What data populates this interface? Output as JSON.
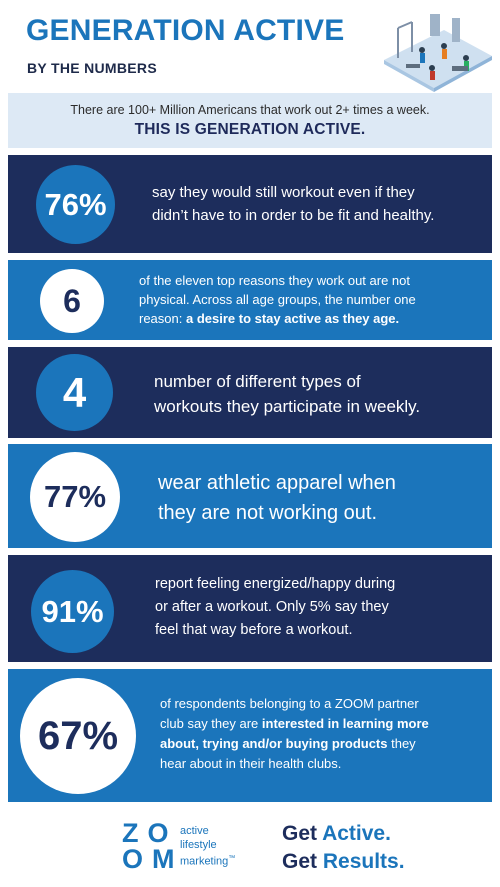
{
  "header": {
    "title": "GENERATION ACTIVE",
    "subtitle": "BY THE NUMBERS",
    "illustration_icon": "gym-illustration-icon"
  },
  "intro": {
    "text": "There are 100+ Million Americans that work out 2+ times a week.",
    "strong": "THIS IS GENERATION ACTIVE."
  },
  "stats": [
    {
      "value": "76%",
      "lines": [
        "say they would still workout even if they",
        "didn’t have to in order to be fit and healthy."
      ]
    },
    {
      "value": "6",
      "lines": [
        "of the eleven top reasons they work out are not",
        "physical. Across all age groups, the number one"
      ],
      "line3_plain": "reason: ",
      "line3_bold": "a desire to stay active as they age."
    },
    {
      "value": "4",
      "lines": [
        "number of different types of",
        "workouts they participate in weekly."
      ]
    },
    {
      "value": "77%",
      "lines": [
        "wear athletic apparel when",
        "they are not working out."
      ]
    },
    {
      "value": "91%",
      "lines": [
        "report feeling energized/happy during",
        "or after a workout. Only 5% say they",
        "feel that way before a workout."
      ]
    },
    {
      "value": "67%",
      "l1": "of respondents belonging to a ZOOM partner",
      "l2_plain": "club say they are ",
      "l2_bold": "interested in learning more",
      "l3_bold": "about, trying and/or buying products",
      "l3_plain": " they",
      "l4": "hear about in their health clubs."
    }
  ],
  "footer": {
    "logo_top": "ZO",
    "logo_bottom": "OM",
    "logo_sub": [
      "active",
      "lifestyle",
      "marketing"
    ],
    "trademark": "™",
    "tag1_plain": "Get ",
    "tag1_hl": "Active.",
    "tag2_plain": "Get ",
    "tag2_hl": "Results."
  },
  "colors": {
    "brand_blue": "#1b75bb",
    "navy": "#1d2d5c",
    "intro_bg": "#dde9f5"
  }
}
